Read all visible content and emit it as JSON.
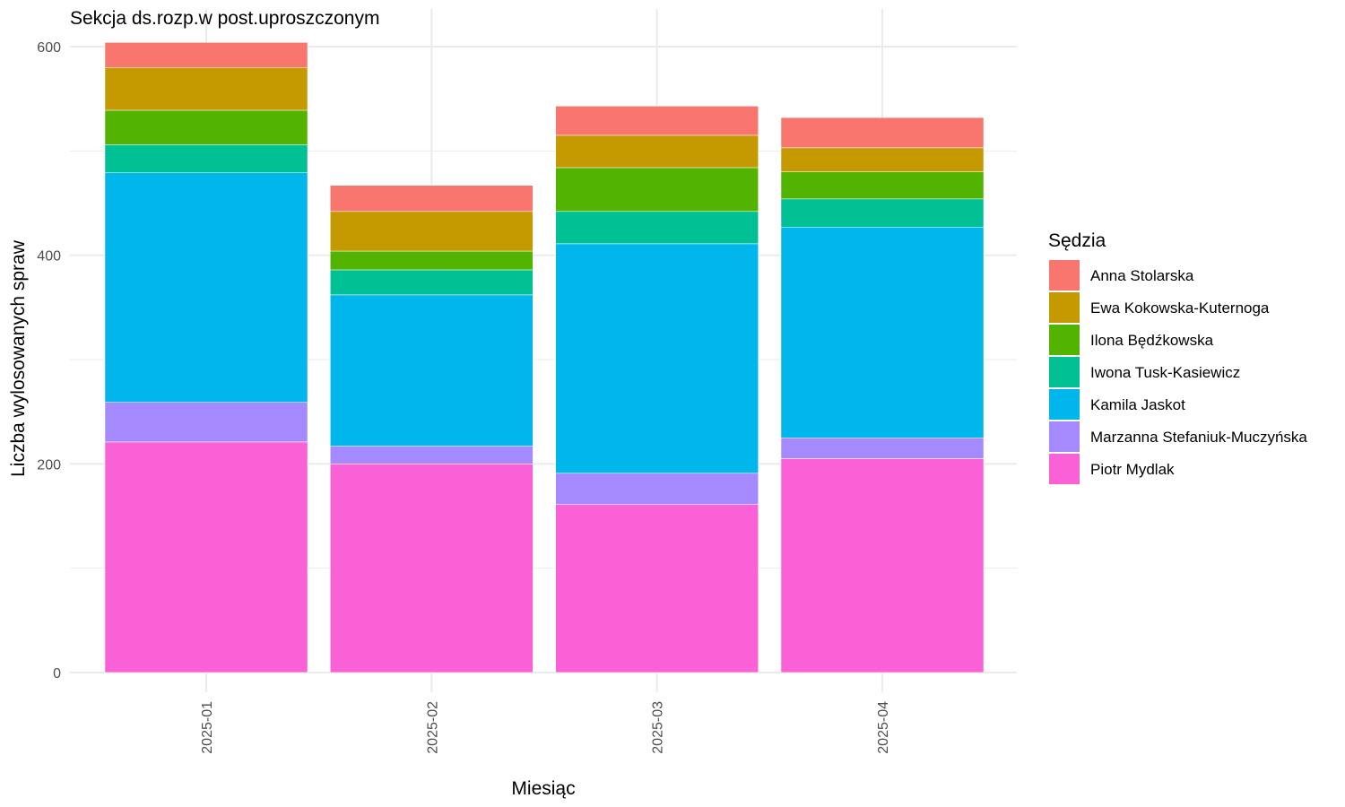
{
  "chart_data": {
    "type": "bar",
    "stacked": true,
    "title": "Sekcja ds.rozp.w post.uproszczonym",
    "xlabel": "Miesiąc",
    "ylabel": "Liczba wylosowanych spraw",
    "ylim": [
      0,
      620
    ],
    "yticks": [
      0,
      200,
      400,
      600
    ],
    "ytick_labels": [
      "0",
      "200",
      "400",
      "600"
    ],
    "grid": true,
    "legend_position": "right",
    "legend_title": "Sędzia",
    "categories": [
      "2025-01",
      "2025-02",
      "2025-03",
      "2025-04"
    ],
    "series": [
      {
        "name": "Piotr Mydlak",
        "color": "#FB61D7",
        "values": [
          221,
          200,
          161,
          205
        ]
      },
      {
        "name": "Marzanna Stefaniuk-Muczyńska",
        "color": "#A58AFF",
        "values": [
          38,
          17,
          30,
          20
        ]
      },
      {
        "name": "Kamila Jaskot",
        "color": "#00B6EB",
        "values": [
          220,
          145,
          220,
          202
        ]
      },
      {
        "name": "Iwona Tusk-Kasiewicz",
        "color": "#00C094",
        "values": [
          27,
          24,
          31,
          27
        ]
      },
      {
        "name": "Ilona Będźkowska",
        "color": "#53B400",
        "values": [
          33,
          18,
          42,
          26
        ]
      },
      {
        "name": "Ewa Kokowska-Kuternoga",
        "color": "#C49A00",
        "values": [
          41,
          38,
          31,
          23
        ]
      },
      {
        "name": "Anna Stolarska",
        "color": "#F8766D",
        "values": [
          24,
          25,
          28,
          29
        ]
      }
    ],
    "legend_order": [
      "Anna Stolarska",
      "Ewa Kokowska-Kuternoga",
      "Ilona Będźkowska",
      "Iwona Tusk-Kasiewicz",
      "Kamila Jaskot",
      "Marzanna Stefaniuk-Muczyńska",
      "Piotr Mydlak"
    ]
  }
}
